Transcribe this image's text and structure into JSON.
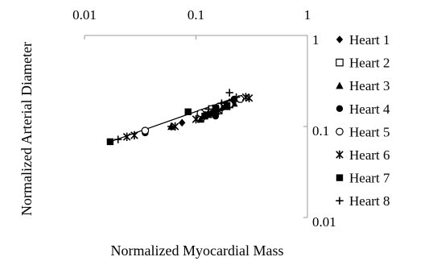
{
  "chart_data": {
    "type": "scatter",
    "title": "",
    "xlabel": "Normalized Myocardial Mass",
    "ylabel": "Normalized Arterial Diameter",
    "x_scale": "log",
    "y_scale": "log",
    "xlim": [
      0.01,
      1
    ],
    "ylim": [
      0.01,
      1
    ],
    "x_ticks": [
      "0.01",
      "0.1",
      "1"
    ],
    "y_ticks": [
      "1",
      "0.1",
      "0.01"
    ],
    "x_axis_position": "top",
    "y_axis_position": "right",
    "grid": false,
    "legend_position": "right",
    "trendline": {
      "x": [
        0.017,
        0.26
      ],
      "y": [
        0.068,
        0.22
      ]
    },
    "series": [
      {
        "name": "Heart 1",
        "marker": "diamond",
        "points": [
          [
            0.16,
            0.16
          ],
          [
            0.17,
            0.17
          ],
          [
            0.19,
            0.175
          ],
          [
            0.2,
            0.185
          ],
          [
            0.22,
            0.19
          ],
          [
            0.24,
            0.2
          ],
          [
            0.13,
            0.14
          ],
          [
            0.12,
            0.13
          ],
          [
            0.075,
            0.11
          ]
        ]
      },
      {
        "name": "Heart 2",
        "marker": "square-open",
        "points": [
          [
            0.18,
            0.17
          ],
          [
            0.2,
            0.175
          ],
          [
            0.16,
            0.15
          ],
          [
            0.11,
            0.125
          ],
          [
            0.14,
            0.155
          ]
        ]
      },
      {
        "name": "Heart 3",
        "marker": "triangle",
        "points": [
          [
            0.11,
            0.12
          ],
          [
            0.13,
            0.135
          ],
          [
            0.15,
            0.145
          ],
          [
            0.19,
            0.165
          ],
          [
            0.06,
            0.1
          ],
          [
            0.22,
            0.18
          ]
        ]
      },
      {
        "name": "Heart 4",
        "marker": "circle",
        "points": [
          [
            0.035,
            0.085
          ],
          [
            0.14,
            0.14
          ],
          [
            0.17,
            0.16
          ],
          [
            0.15,
            0.13
          ],
          [
            0.22,
            0.2
          ],
          [
            0.12,
            0.135
          ]
        ]
      },
      {
        "name": "Heart 5",
        "marker": "circle-open",
        "points": [
          [
            0.035,
            0.09
          ],
          [
            0.11,
            0.14
          ],
          [
            0.25,
            0.2
          ],
          [
            0.16,
            0.165
          ],
          [
            0.2,
            0.175
          ]
        ]
      },
      {
        "name": "Heart 6",
        "marker": "asterisk",
        "points": [
          [
            0.024,
            0.077
          ],
          [
            0.028,
            0.08
          ],
          [
            0.065,
            0.1
          ],
          [
            0.1,
            0.12
          ],
          [
            0.16,
            0.15
          ],
          [
            0.28,
            0.21
          ],
          [
            0.3,
            0.205
          ]
        ]
      },
      {
        "name": "Heart 7",
        "marker": "square",
        "points": [
          [
            0.017,
            0.068
          ],
          [
            0.085,
            0.145
          ],
          [
            0.12,
            0.13
          ],
          [
            0.15,
            0.16
          ],
          [
            0.19,
            0.17
          ]
        ]
      },
      {
        "name": "Heart 8",
        "marker": "plus",
        "points": [
          [
            0.02,
            0.072
          ],
          [
            0.06,
            0.1
          ],
          [
            0.13,
            0.155
          ],
          [
            0.2,
            0.235
          ],
          [
            0.23,
            0.21
          ],
          [
            0.17,
            0.18
          ]
        ]
      }
    ]
  }
}
